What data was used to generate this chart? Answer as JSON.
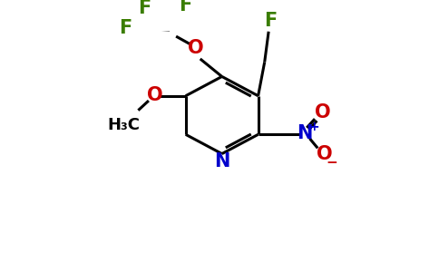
{
  "bg_color": "#ffffff",
  "bond_color": "#000000",
  "bond_width": 2.2,
  "figsize": [
    4.84,
    3.0
  ],
  "dpi": 100,
  "colors": {
    "F": "#3a7d00",
    "O": "#cc0000",
    "N": "#0000cc",
    "C": "#000000"
  }
}
